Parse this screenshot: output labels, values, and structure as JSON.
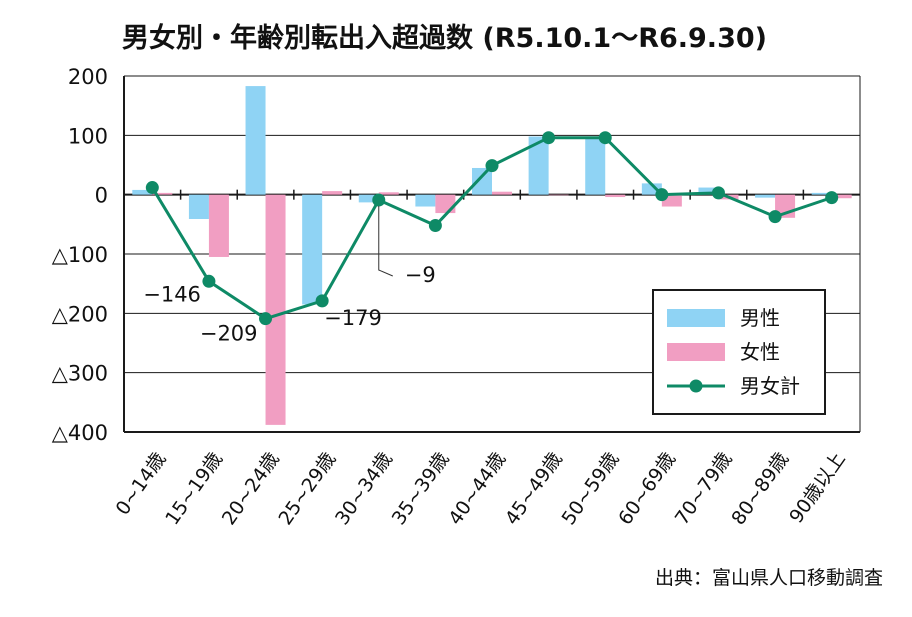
{
  "chart_data": {
    "type": "bar",
    "title": "男女別・年齢別転出入超過数 (R5.10.1～R6.9.30)",
    "categories": [
      "0~14歳",
      "15~19歳",
      "20~24歳",
      "25~29歳",
      "30~34歳",
      "35~39歳",
      "40~44歳",
      "45~49歳",
      "50~59歳",
      "60~69歳",
      "70~79歳",
      "80~89歳",
      "90歳以上"
    ],
    "ylim": [
      -400,
      200
    ],
    "yticks": [
      {
        "value": 200,
        "label": "200"
      },
      {
        "value": 100,
        "label": "100"
      },
      {
        "value": 0,
        "label": "0"
      },
      {
        "value": -100,
        "label": "△100"
      },
      {
        "value": -200,
        "label": "△200"
      },
      {
        "value": -300,
        "label": "△300"
      },
      {
        "value": -400,
        "label": "△400"
      }
    ],
    "grid": true,
    "legend_position": "bottom-right",
    "series": [
      {
        "name": "男性",
        "type": "bar",
        "color": "#8fd3f4",
        "values": [
          8,
          -41,
          183,
          -185,
          -13,
          -20,
          45,
          98,
          96,
          19,
          12,
          -5,
          3
        ]
      },
      {
        "name": "女性",
        "type": "bar",
        "color": "#f19ec2",
        "values": [
          3,
          -105,
          -388,
          6,
          4,
          -31,
          5,
          -1,
          -4,
          -20,
          -8,
          -39,
          -6
        ]
      },
      {
        "name": "男女計",
        "type": "line",
        "color": "#0e8a66",
        "values": [
          12,
          -146,
          -209,
          -179,
          -9,
          -52,
          49,
          96,
          96,
          0,
          3,
          -37,
          -5
        ]
      }
    ],
    "annotations": [
      {
        "category_index": 1,
        "value": -146,
        "text": "−146"
      },
      {
        "category_index": 2,
        "value": -209,
        "text": "−209"
      },
      {
        "category_index": 3,
        "value": -179,
        "text": "−179"
      },
      {
        "category_index": 4,
        "value": -9,
        "text": "−9"
      }
    ]
  },
  "source": "出典：富山県人口移動調査"
}
